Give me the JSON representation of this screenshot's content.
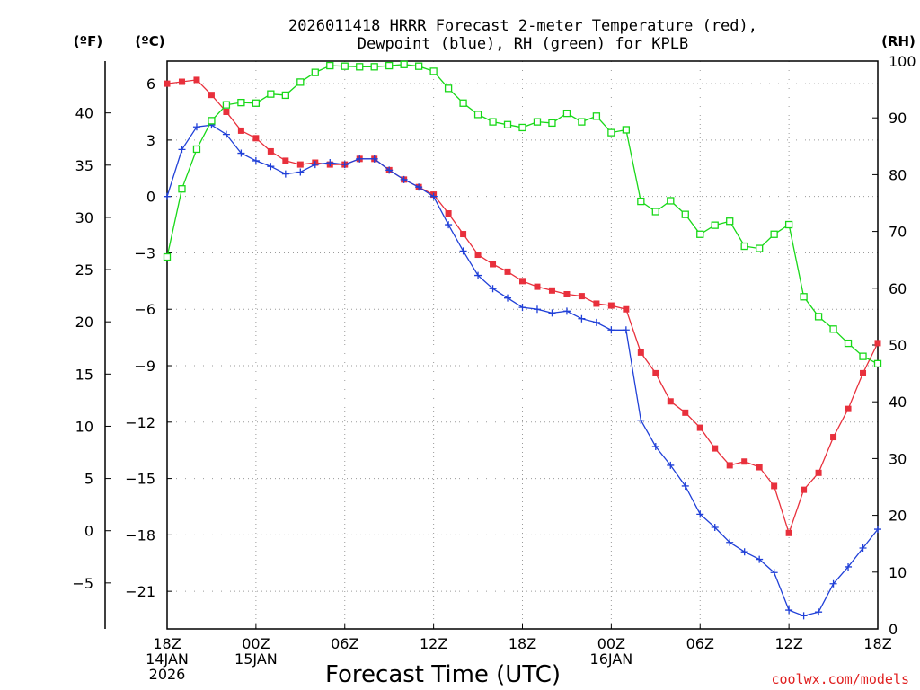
{
  "chart_data": {
    "type": "line",
    "title_line1": "2026011418 HRRR Forecast 2-meter Temperature (red),",
    "title_line2": "Dewpoint (blue), RH (green) for KPLB",
    "xlabel": "Forecast Time (UTC)",
    "left_outer_unit": "(ºF)",
    "left_inner_unit": "(ºC)",
    "right_unit": "(RH)",
    "credit": "coolwx.com/models",
    "x_range_hours": [
      0,
      48
    ],
    "celsius_range": [
      -23,
      7.2
    ],
    "rh_range": [
      0,
      100
    ],
    "x_ticks": [
      {
        "hour": 0,
        "lines": [
          "18Z",
          "14JAN",
          "2026"
        ]
      },
      {
        "hour": 6,
        "lines": [
          "00Z",
          "15JAN"
        ]
      },
      {
        "hour": 12,
        "lines": [
          "06Z"
        ]
      },
      {
        "hour": 18,
        "lines": [
          "12Z"
        ]
      },
      {
        "hour": 24,
        "lines": [
          "18Z"
        ]
      },
      {
        "hour": 30,
        "lines": [
          "00Z",
          "16JAN"
        ]
      },
      {
        "hour": 36,
        "lines": [
          "06Z"
        ]
      },
      {
        "hour": 42,
        "lines": [
          "12Z"
        ]
      },
      {
        "hour": 48,
        "lines": [
          "18Z"
        ]
      }
    ],
    "celsius_ticks": [
      "6",
      "3",
      "0",
      "−3",
      "−6",
      "−9",
      "−12",
      "−15",
      "−18",
      "−21"
    ],
    "fahrenheit_ticks": [
      "40",
      "35",
      "30",
      "25",
      "20",
      "15",
      "10",
      "5",
      "0",
      "−5"
    ],
    "rh_ticks": [
      "100",
      "90",
      "80",
      "70",
      "60",
      "50",
      "40",
      "30",
      "20",
      "10",
      "0"
    ],
    "series": [
      {
        "name": "2-meter Temperature",
        "unit": "°C",
        "color": "#e8303c",
        "marker": "filled-square",
        "values": [
          6.0,
          6.1,
          6.2,
          5.4,
          4.5,
          3.5,
          3.1,
          2.4,
          1.9,
          1.7,
          1.8,
          1.7,
          1.7,
          2.0,
          2.0,
          1.4,
          0.9,
          0.5,
          0.1,
          -0.9,
          -2.0,
          -3.1,
          -3.6,
          -4.0,
          -4.5,
          -4.8,
          -5.0,
          -5.2,
          -5.3,
          -5.7,
          -5.8,
          -6.0,
          -8.3,
          -9.4,
          -10.9,
          -11.5,
          -12.3,
          -13.4,
          -14.3,
          -14.1,
          -14.4,
          -15.4,
          -17.9,
          -15.6,
          -14.7,
          -12.8,
          -11.3,
          -9.4,
          -7.8
        ]
      },
      {
        "name": "Dewpoint",
        "unit": "°C",
        "color": "#2040d8",
        "marker": "plus",
        "values": [
          0.0,
          2.5,
          3.7,
          3.8,
          3.3,
          2.3,
          1.9,
          1.6,
          1.2,
          1.3,
          1.7,
          1.8,
          1.7,
          2.0,
          2.0,
          1.4,
          0.9,
          0.5,
          0.0,
          -1.5,
          -2.9,
          -4.2,
          -4.9,
          -5.4,
          -5.9,
          -6.0,
          -6.2,
          -6.1,
          -6.5,
          -6.7,
          -7.1,
          -7.1,
          -11.9,
          -13.3,
          -14.3,
          -15.4,
          -16.9,
          -17.6,
          -18.4,
          -18.9,
          -19.3,
          -20.0,
          -22.0,
          -22.3,
          -22.1,
          -20.6,
          -19.7,
          -18.7,
          -17.7
        ]
      },
      {
        "name": "Relative Humidity",
        "unit": "%",
        "color": "#18d818",
        "marker": "open-square",
        "values": [
          65.5,
          77.5,
          84.5,
          89.5,
          92.3,
          92.7,
          92.6,
          94.2,
          94.0,
          96.3,
          98.0,
          99.2,
          99.1,
          99.0,
          99.0,
          99.2,
          99.4,
          99.1,
          98.2,
          95.2,
          92.6,
          90.6,
          89.3,
          88.8,
          88.3,
          89.3,
          89.1,
          90.8,
          89.3,
          90.3,
          87.4,
          87.9,
          75.3,
          73.5,
          75.4,
          73.0,
          69.5,
          71.1,
          71.8,
          67.4,
          67.0,
          69.5,
          71.2,
          58.5,
          55.0,
          52.8,
          50.3,
          48.0,
          46.7
        ]
      }
    ]
  }
}
